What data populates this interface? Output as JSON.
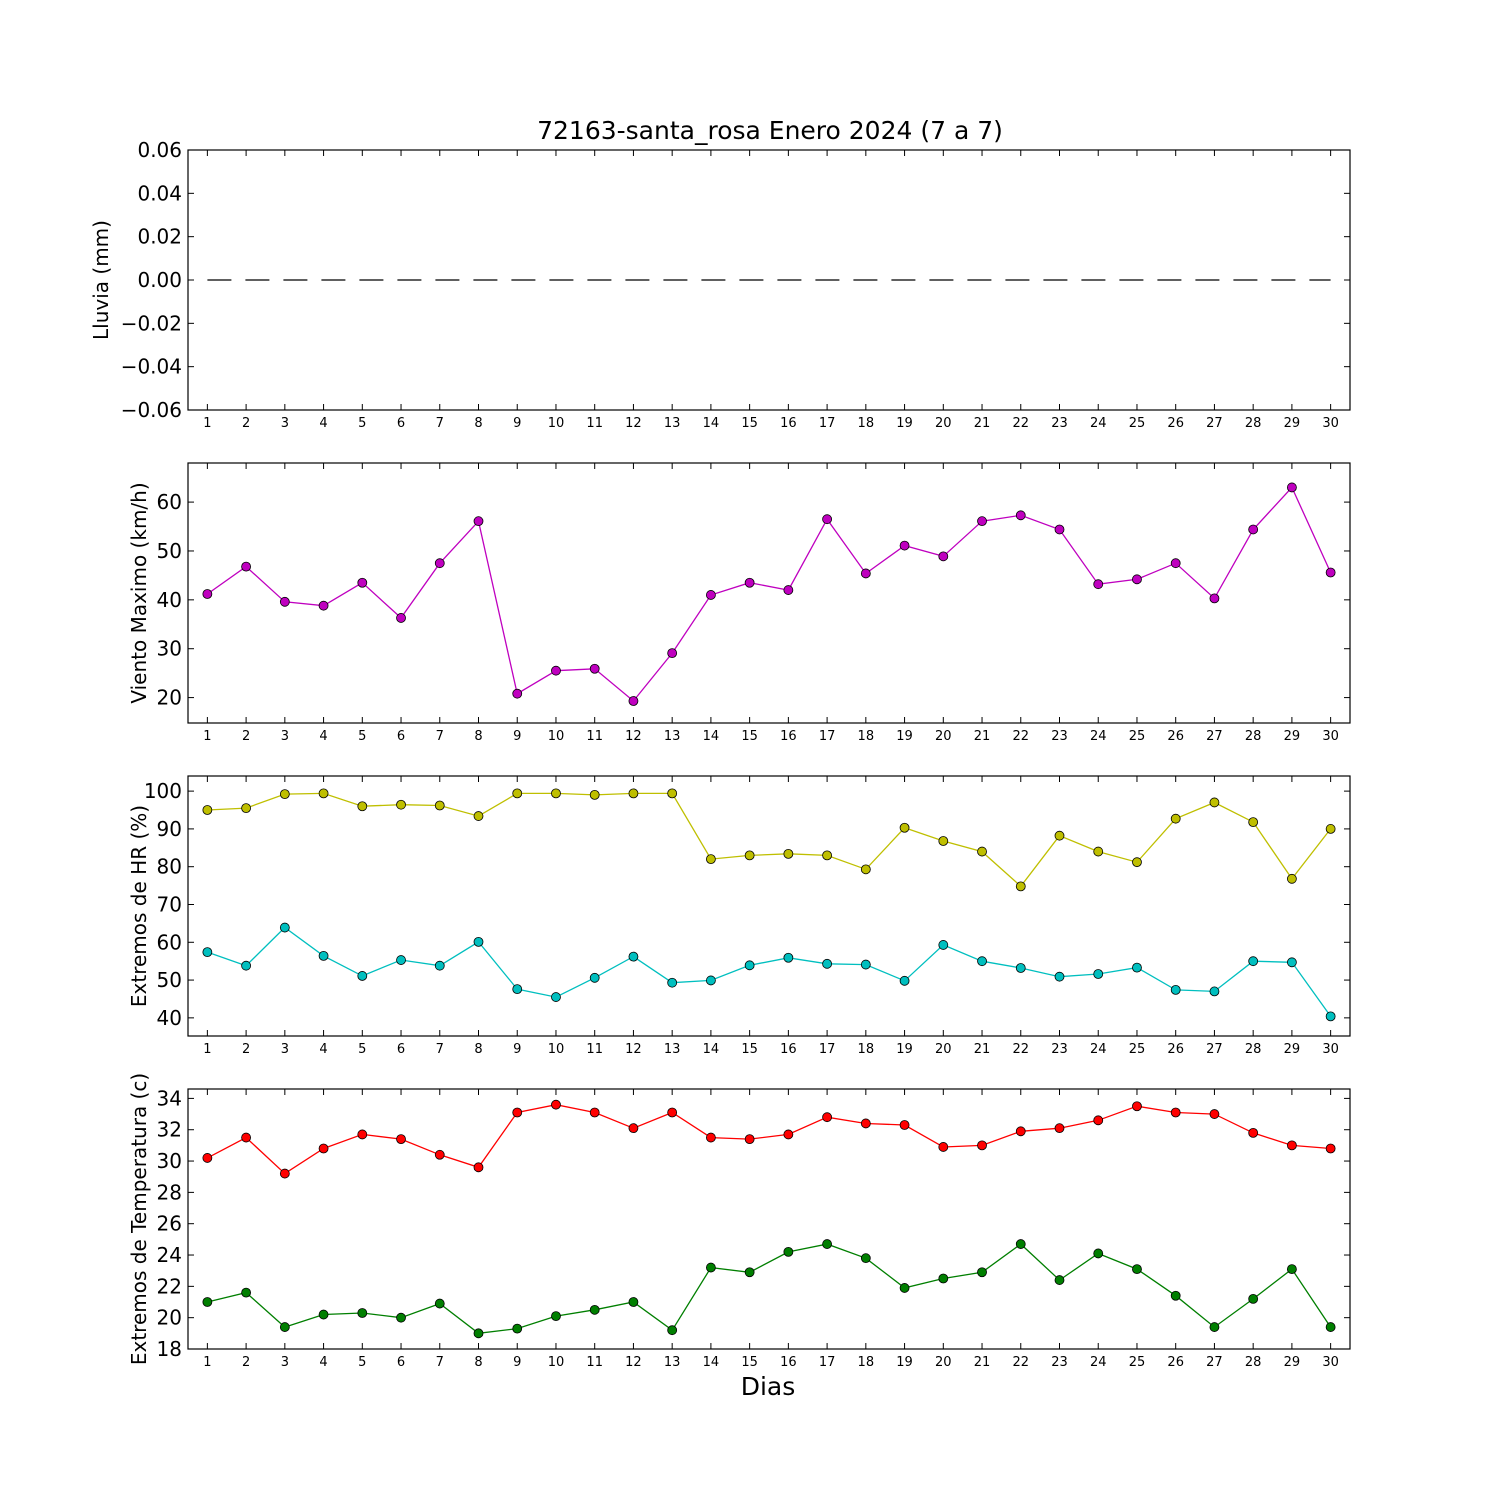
{
  "title": "72163-santa_rosa Enero 2024  (7 a 7)",
  "xlabel": "Dias",
  "colors": {
    "wind": "#bf00bf",
    "hr_max": "#bfbf00",
    "hr_min": "#00bfbf",
    "temp_max": "#ff0000",
    "temp_min": "#007f00",
    "rain": "#000000"
  },
  "chart_data": [
    {
      "type": "line",
      "ylabel": "Lluvia (mm)",
      "ylim": [
        -0.06,
        0.06
      ],
      "yticks": [
        "0.06",
        "0.04",
        "0.02",
        "0.00",
        "−0.02",
        "−0.04",
        "−0.06"
      ],
      "x": [
        1,
        2,
        3,
        4,
        5,
        6,
        7,
        8,
        9,
        10,
        11,
        12,
        13,
        14,
        15,
        16,
        17,
        18,
        19,
        20,
        21,
        22,
        23,
        24,
        25,
        26,
        27,
        28,
        29,
        30
      ],
      "series": [
        {
          "values": [
            0,
            0,
            0,
            0,
            0,
            0,
            0,
            0,
            0,
            0,
            0,
            0,
            0,
            0,
            0,
            0,
            0,
            0,
            0,
            0,
            0,
            0,
            0,
            0,
            0,
            0,
            0,
            0,
            0,
            0
          ],
          "style": "dashed",
          "color": "#000000"
        }
      ]
    },
    {
      "type": "line",
      "ylabel": "Viento Maximo (km/h)",
      "ylim": [
        14.8,
        68.0
      ],
      "yticks": [
        "20",
        "30",
        "40",
        "50",
        "60"
      ],
      "x": [
        1,
        2,
        3,
        4,
        5,
        6,
        7,
        8,
        9,
        10,
        11,
        12,
        13,
        14,
        15,
        16,
        17,
        18,
        19,
        20,
        21,
        22,
        23,
        24,
        25,
        26,
        27,
        28,
        29,
        30
      ],
      "series": [
        {
          "values": [
            41.2,
            46.8,
            39.6,
            38.8,
            43.5,
            36.3,
            47.5,
            56.1,
            20.8,
            25.5,
            25.9,
            19.3,
            29.1,
            41.0,
            43.5,
            42.0,
            56.5,
            45.4,
            51.1,
            48.9,
            56.1,
            57.3,
            54.4,
            43.2,
            44.2,
            47.5,
            40.3,
            54.4,
            63.0,
            45.6
          ],
          "color": "#bf00bf"
        }
      ]
    },
    {
      "type": "line",
      "ylabel": "Extremos de HR (%)",
      "ylim": [
        35.2,
        104.0
      ],
      "yticks": [
        "40",
        "50",
        "60",
        "70",
        "80",
        "90",
        "100"
      ],
      "x": [
        1,
        2,
        3,
        4,
        5,
        6,
        7,
        8,
        9,
        10,
        11,
        12,
        13,
        14,
        15,
        16,
        17,
        18,
        19,
        20,
        21,
        22,
        23,
        24,
        25,
        26,
        27,
        28,
        29,
        30
      ],
      "series": [
        {
          "values": [
            95.0,
            95.5,
            99.2,
            99.4,
            96.0,
            96.4,
            96.2,
            93.4,
            99.4,
            99.4,
            99.0,
            99.4,
            99.4,
            82.0,
            83.0,
            83.4,
            83.0,
            79.3,
            90.3,
            86.8,
            84.0,
            74.8,
            88.2,
            84.0,
            81.2,
            92.7,
            97.0,
            91.8,
            76.8,
            90.0
          ],
          "color": "#bfbf00"
        },
        {
          "values": [
            57.4,
            53.8,
            63.9,
            56.4,
            51.1,
            55.3,
            53.8,
            60.1,
            47.6,
            45.5,
            50.6,
            56.2,
            49.3,
            49.9,
            53.9,
            55.9,
            54.3,
            54.1,
            49.8,
            59.3,
            55.0,
            53.2,
            50.9,
            51.6,
            53.3,
            47.4,
            47.0,
            55.0,
            54.7,
            40.4
          ],
          "color": "#00bfbf"
        }
      ]
    },
    {
      "type": "line",
      "ylabel": "Extremos de Temperatura (c)",
      "ylim": [
        18.0,
        34.6
      ],
      "yticks": [
        "18",
        "20",
        "22",
        "24",
        "26",
        "28",
        "30",
        "32",
        "34"
      ],
      "x": [
        1,
        2,
        3,
        4,
        5,
        6,
        7,
        8,
        9,
        10,
        11,
        12,
        13,
        14,
        15,
        16,
        17,
        18,
        19,
        20,
        21,
        22,
        23,
        24,
        25,
        26,
        27,
        28,
        29,
        30
      ],
      "series": [
        {
          "values": [
            30.2,
            31.5,
            29.2,
            30.8,
            31.7,
            31.4,
            30.4,
            29.6,
            33.1,
            33.6,
            33.1,
            32.1,
            33.1,
            31.5,
            31.4,
            31.7,
            32.8,
            32.4,
            32.3,
            30.9,
            31.0,
            31.9,
            32.1,
            32.6,
            33.5,
            33.1,
            33.0,
            31.8,
            31.0,
            30.8
          ],
          "color": "#ff0000"
        },
        {
          "values": [
            21.0,
            21.6,
            19.4,
            20.2,
            20.3,
            20.0,
            20.9,
            19.0,
            19.3,
            20.1,
            20.5,
            21.0,
            19.2,
            23.2,
            22.9,
            24.2,
            24.7,
            23.8,
            21.9,
            22.5,
            22.9,
            24.7,
            22.4,
            24.1,
            23.1,
            21.4,
            19.4,
            21.2,
            23.1,
            19.4
          ],
          "color": "#007f00"
        }
      ]
    }
  ]
}
